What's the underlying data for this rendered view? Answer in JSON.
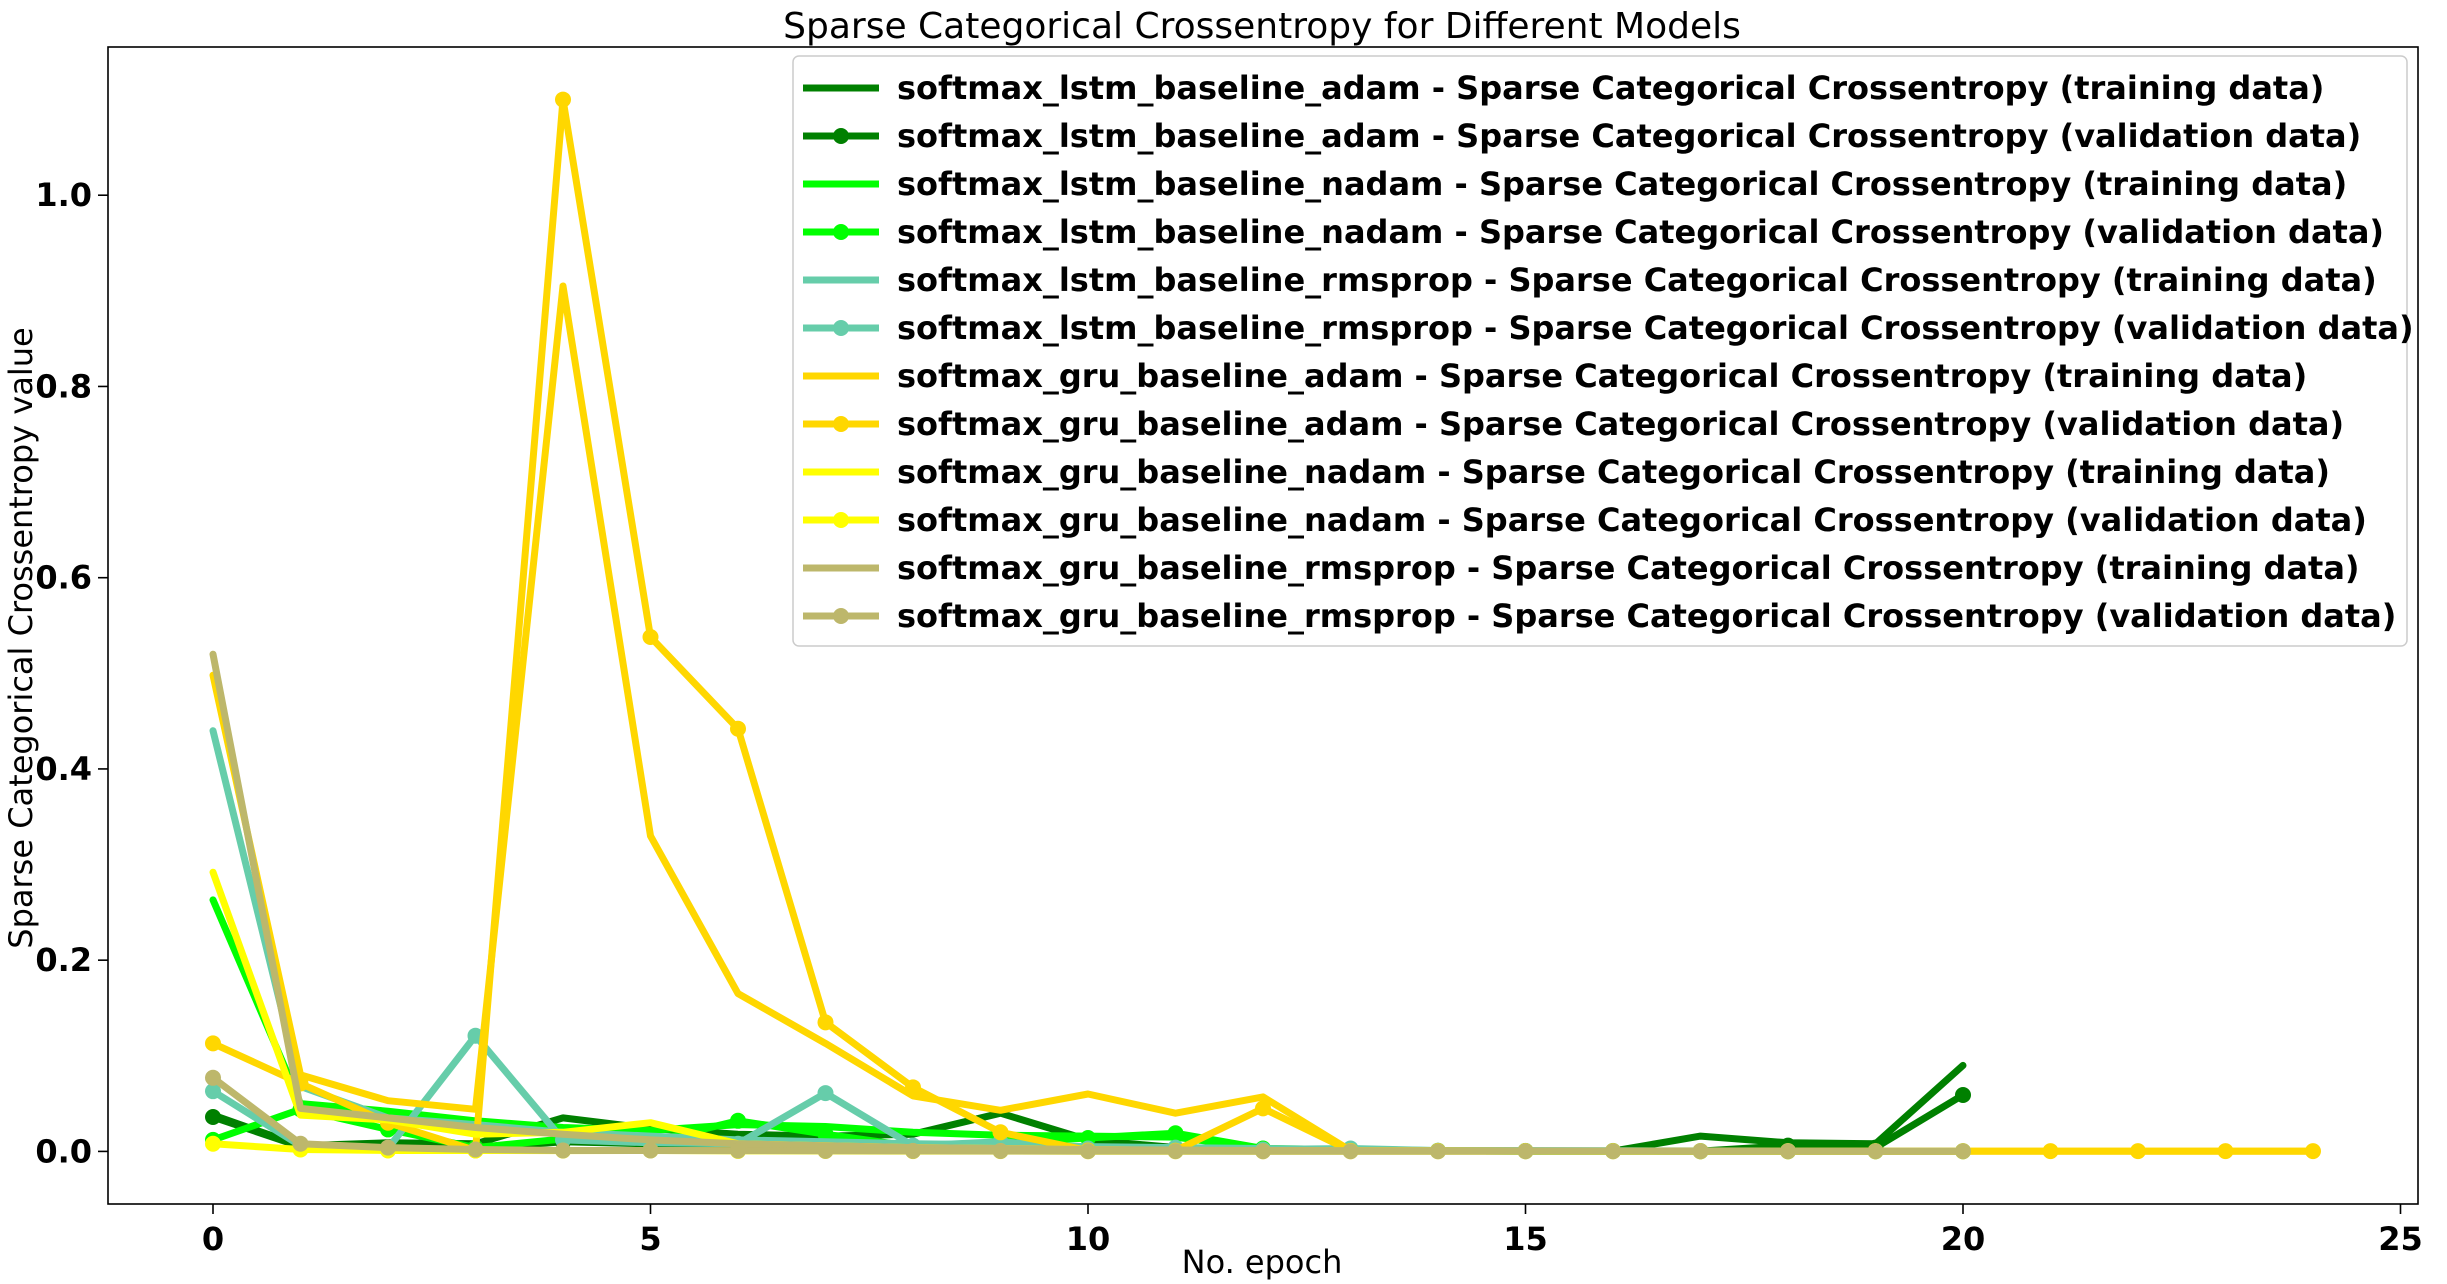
{
  "chart_data": {
    "type": "line",
    "title": "Sparse Categorical Crossentropy for Different Models",
    "xlabel": "No. epoch",
    "ylabel": "Sparse Categorical Crossentropy value",
    "xlim": [
      -1.2,
      25.2
    ],
    "ylim": [
      -0.055,
      1.155
    ],
    "xticks": [
      0,
      5,
      10,
      15,
      20,
      25
    ],
    "yticks": [
      0.0,
      0.2,
      0.4,
      0.6,
      0.8,
      1.0
    ],
    "xtick_labels": [
      "0",
      "5",
      "10",
      "15",
      "20",
      "25"
    ],
    "ytick_labels": [
      "0.0",
      "0.2",
      "0.4",
      "0.6",
      "0.8",
      "1.0"
    ],
    "grid": false,
    "legend_position": "top-right",
    "series": [
      {
        "name": "softmax_lstm_baseline_adam - Sparse Categorical Crossentropy (training data)",
        "color": "#008000",
        "marker": false,
        "x": [
          0,
          1,
          2,
          3,
          4,
          5,
          6,
          7,
          8,
          9,
          10,
          11,
          12,
          13,
          14,
          15,
          16,
          17,
          18,
          19,
          20
        ],
        "y": [
          0.038,
          0.006,
          0.009,
          0.008,
          0.035,
          0.024,
          0.018,
          0.016,
          0.018,
          0.04,
          0.012,
          0.004,
          0.002,
          0.001,
          0.0005,
          0.0003,
          0.0003,
          0.016,
          0.009,
          0.008,
          0.09
        ]
      },
      {
        "name": "softmax_lstm_baseline_adam - Sparse Categorical Crossentropy (validation data)",
        "color": "#008000",
        "marker": true,
        "x": [
          0,
          1,
          2,
          3,
          4,
          5,
          6,
          7,
          8,
          9,
          10,
          11,
          12,
          13,
          14,
          15,
          16,
          17,
          18,
          19,
          20
        ],
        "y": [
          0.036,
          0.005,
          0.004,
          0.003,
          0.01,
          0.008,
          0.006,
          0.005,
          0.004,
          0.006,
          0.002,
          0.001,
          0.0008,
          0.0006,
          0.0005,
          0.0004,
          0.0004,
          0.0003,
          0.006,
          0.004,
          0.059
        ]
      },
      {
        "name": "softmax_lstm_baseline_nadam - Sparse Categorical Crossentropy (training data)",
        "color": "#00ff00",
        "marker": false,
        "x": [
          0,
          1,
          2,
          3,
          4,
          5,
          6,
          7,
          8,
          9,
          10,
          11,
          12,
          13,
          14,
          15,
          16,
          17,
          18,
          19,
          20
        ],
        "y": [
          0.263,
          0.05,
          0.042,
          0.032,
          0.025,
          0.022,
          0.028,
          0.026,
          0.02,
          0.017,
          0.016,
          0.015,
          0.003,
          0.001,
          0.0005,
          0.0003,
          0.0003,
          0.0002,
          0.0002,
          0.0002,
          0.0002
        ]
      },
      {
        "name": "softmax_lstm_baseline_nadam - Sparse Categorical Crossentropy (validation data)",
        "color": "#00ff00",
        "marker": true,
        "x": [
          0,
          1,
          2,
          3,
          4,
          5,
          6,
          7,
          8,
          9,
          10,
          11,
          12,
          13,
          14,
          15,
          16,
          17,
          18,
          19,
          20
        ],
        "y": [
          0.012,
          0.044,
          0.023,
          0.004,
          0.013,
          0.01,
          0.032,
          0.018,
          0.005,
          0.009,
          0.014,
          0.019,
          0.003,
          0.002,
          0.0005,
          0.0003,
          0.0003,
          0.0002,
          0.0002,
          0.0002,
          0.0002
        ]
      },
      {
        "name": "softmax_lstm_baseline_rmsprop - Sparse Categorical Crossentropy (training data)",
        "color": "#66cdaa",
        "marker": false,
        "x": [
          0,
          1,
          2,
          3,
          4,
          5,
          6,
          7,
          8,
          9,
          10,
          11,
          12,
          13,
          14,
          15,
          16,
          17,
          18,
          19,
          20
        ],
        "y": [
          0.44,
          0.068,
          0.035,
          0.028,
          0.02,
          0.016,
          0.012,
          0.01,
          0.008,
          0.007,
          0.005,
          0.004,
          0.003,
          0.002,
          0.001,
          0.0008,
          0.0006,
          0.0005,
          0.0004,
          0.0003,
          0.0003
        ]
      },
      {
        "name": "softmax_lstm_baseline_rmsprop - Sparse Categorical Crossentropy (validation data)",
        "color": "#66cdaa",
        "marker": true,
        "x": [
          0,
          1,
          2,
          3,
          4,
          5,
          6,
          7,
          8,
          9,
          10,
          11,
          12,
          13,
          14,
          15,
          16,
          17,
          18,
          19,
          20
        ],
        "y": [
          0.063,
          0.006,
          0.003,
          0.121,
          0.012,
          0.009,
          0.008,
          0.061,
          0.006,
          0.01,
          0.003,
          0.004,
          0.002,
          0.003,
          0.0008,
          0.0006,
          0.0005,
          0.0004,
          0.0004,
          0.0003,
          0.0003
        ]
      },
      {
        "name": "softmax_gru_baseline_adam - Sparse Categorical Crossentropy (training data)",
        "color": "#ffd700",
        "marker": false,
        "x": [
          0,
          1,
          2,
          3,
          4,
          5,
          6,
          7,
          8,
          9,
          10,
          11,
          12,
          13,
          14,
          15,
          16,
          17,
          18,
          19,
          20,
          21,
          22,
          23,
          24
        ],
        "y": [
          0.498,
          0.08,
          0.053,
          0.044,
          0.905,
          0.33,
          0.165,
          0.113,
          0.058,
          0.043,
          0.06,
          0.04,
          0.057,
          0.0008,
          0.0005,
          0.0004,
          0.0003,
          0.0003,
          0.0003,
          0.0002,
          0.0002,
          0.0002,
          0.0002,
          0.0002,
          0.0002
        ]
      },
      {
        "name": "softmax_gru_baseline_adam - Sparse Categorical Crossentropy (validation data)",
        "color": "#ffd700",
        "marker": true,
        "x": [
          0,
          1,
          2,
          3,
          4,
          5,
          6,
          7,
          8,
          9,
          10,
          11,
          12,
          13,
          14,
          15,
          16,
          17,
          18,
          19,
          20,
          21,
          22,
          23,
          24
        ],
        "y": [
          0.113,
          0.071,
          0.03,
          0.001,
          1.1,
          0.538,
          0.442,
          0.135,
          0.067,
          0.02,
          0.001,
          0.0008,
          0.045,
          0.0006,
          0.0005,
          0.0004,
          0.0004,
          0.0003,
          0.0003,
          0.0003,
          0.0003,
          0.0003,
          0.0003,
          0.0003,
          0.0003
        ]
      },
      {
        "name": "softmax_gru_baseline_nadam - Sparse Categorical Crossentropy (training data)",
        "color": "#ffff00",
        "marker": false,
        "x": [
          0,
          1,
          2,
          3,
          4,
          5,
          6,
          7,
          8,
          9,
          10,
          11,
          12,
          13,
          14,
          15,
          16,
          17,
          18,
          19,
          20
        ],
        "y": [
          0.292,
          0.038,
          0.033,
          0.018,
          0.02,
          0.03,
          0.008,
          0.006,
          0.004,
          0.003,
          0.002,
          0.001,
          0.0008,
          0.0006,
          0.0005,
          0.0004,
          0.0003,
          0.0003,
          0.0002,
          0.0002,
          0.0002
        ]
      },
      {
        "name": "softmax_gru_baseline_nadam - Sparse Categorical Crossentropy (validation data)",
        "color": "#ffff00",
        "marker": true,
        "x": [
          0,
          1,
          2,
          3,
          4,
          5,
          6,
          7,
          8,
          9,
          10,
          11,
          12,
          13,
          14,
          15,
          16,
          17,
          18,
          19,
          20
        ],
        "y": [
          0.008,
          0.002,
          0.001,
          0.001,
          0.0008,
          0.001,
          0.0005,
          0.0004,
          0.0003,
          0.0003,
          0.0002,
          0.0002,
          0.0002,
          0.0002,
          0.0002,
          0.0002,
          0.0002,
          0.0002,
          0.0002,
          0.0002,
          0.0002
        ]
      },
      {
        "name": "softmax_gru_baseline_rmsprop - Sparse Categorical Crossentropy (training data)",
        "color": "#bdb76b",
        "marker": false,
        "x": [
          0,
          1,
          2,
          3,
          4,
          5,
          6,
          7,
          8,
          9,
          10,
          11,
          12,
          13,
          14,
          15,
          16,
          17,
          18,
          19,
          20
        ],
        "y": [
          0.52,
          0.045,
          0.035,
          0.025,
          0.018,
          0.012,
          0.008,
          0.006,
          0.004,
          0.003,
          0.002,
          0.0015,
          0.001,
          0.0008,
          0.0006,
          0.0005,
          0.0004,
          0.0003,
          0.0003,
          0.0002,
          0.0002
        ]
      },
      {
        "name": "softmax_gru_baseline_rmsprop - Sparse Categorical Crossentropy (validation data)",
        "color": "#bdb76b",
        "marker": true,
        "x": [
          0,
          1,
          2,
          3,
          4,
          5,
          6,
          7,
          8,
          9,
          10,
          11,
          12,
          13,
          14,
          15,
          16,
          17,
          18,
          19,
          20
        ],
        "y": [
          0.077,
          0.008,
          0.004,
          0.002,
          0.001,
          0.001,
          0.0008,
          0.0006,
          0.0005,
          0.0004,
          0.0003,
          0.0003,
          0.0002,
          0.0002,
          0.0002,
          0.0002,
          0.0002,
          0.0002,
          0.0002,
          0.0002,
          0.0002
        ]
      }
    ]
  }
}
